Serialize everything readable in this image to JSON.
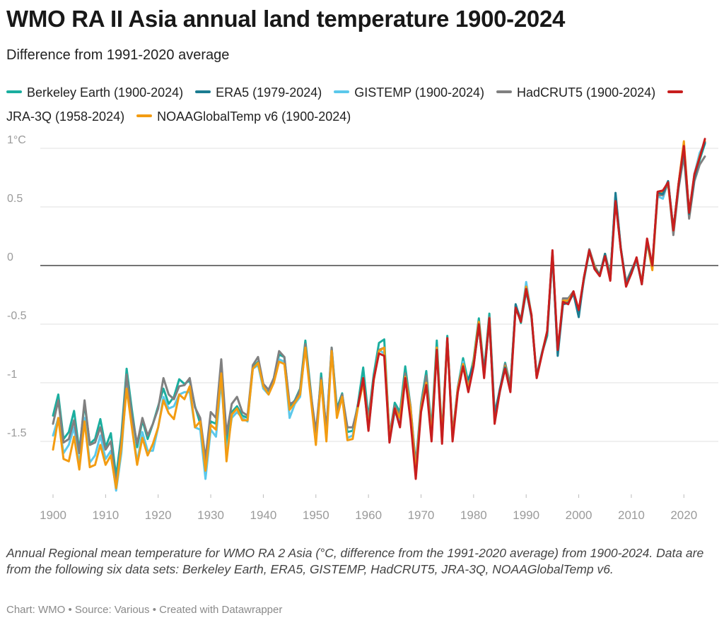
{
  "title": "WMO RA II Asia annual land temperature 1900-2024",
  "subtitle": "Difference from 1991-2020 average",
  "note": "Annual Regional mean temperature for WMO RA 2 Asia (°C, difference from the 1991-2020 average) from 1900-2024. Data are from the following six data sets: Berkeley Earth, ERA5, GISTEMP, HadCRUT5, JRA-3Q, NOAAGlobalTemp v6.",
  "footer": "Chart: WMO • Source: Various • Created with Datawrapper",
  "legend": [
    {
      "label": "Berkeley Earth (1900-2024)",
      "color": "#1aae9f"
    },
    {
      "label": "ERA5 (1979-2024)",
      "color": "#1b7c91"
    },
    {
      "label": "GISTEMP (1900-2024)",
      "color": "#5bc8eb"
    },
    {
      "label": "HadCRUT5 (1900-2024)",
      "color": "#808080"
    },
    {
      "label": "JRA-3Q (1958-2024)",
      "color": "#c81e1e"
    },
    {
      "label": "NOAAGlobalTemp v6 (1900-2024)",
      "color": "#f39c12"
    }
  ],
  "chart_data": {
    "type": "line",
    "xlabel": "",
    "ylabel": "",
    "x_range": [
      1900,
      2024
    ],
    "ylim": [
      -1.95,
      1.1
    ],
    "y_ticks": [
      1,
      0.5,
      0,
      -0.5,
      -1,
      -1.5
    ],
    "y_tick_labels": [
      "1°C",
      "0.5",
      "0",
      "-0.5",
      "-1",
      "-1.5"
    ],
    "x_ticks": [
      1900,
      1910,
      1920,
      1930,
      1940,
      1950,
      1960,
      1970,
      1980,
      1990,
      2000,
      2010,
      2020
    ],
    "x_tick_labels": [
      "1900",
      "1910",
      "1920",
      "1930",
      "1940",
      "1950",
      "1960",
      "1970",
      "1980",
      "1990",
      "2000",
      "2010",
      "2020"
    ],
    "grid": true,
    "zero_line": true,
    "legend_position": "top",
    "series": [
      {
        "name": "Berkeley Earth (1900-2024)",
        "color": "#1aae9f",
        "start": 1900,
        "values": [
          -1.28,
          -1.1,
          -1.48,
          -1.42,
          -1.24,
          -1.58,
          -1.18,
          -1.52,
          -1.48,
          -1.31,
          -1.55,
          -1.43,
          -1.8,
          -1.45,
          -0.88,
          -1.23,
          -1.55,
          -1.32,
          -1.48,
          -1.35,
          -1.2,
          -1.05,
          -1.18,
          -1.12,
          -0.97,
          -1.01,
          -0.98,
          -1.2,
          -1.35,
          -1.7,
          -1.33,
          -1.35,
          -0.85,
          -1.52,
          -1.25,
          -1.2,
          -1.28,
          -1.3,
          -0.87,
          -0.82,
          -1.05,
          -1.08,
          -0.96,
          -0.76,
          -0.78,
          -1.2,
          -1.15,
          -1.05,
          -0.64,
          -1.06,
          -1.5,
          -0.92,
          -1.42,
          -0.7,
          -1.22,
          -1.09,
          -1.42,
          -1.41,
          -1.18,
          -0.87,
          -1.3,
          -0.93,
          -0.66,
          -0.63,
          -1.46,
          -1.17,
          -1.25,
          -0.86,
          -1.2,
          -1.7,
          -1.18,
          -0.9,
          -1.4,
          -0.64,
          -1.45,
          -0.6,
          -1.46,
          -1.04,
          -0.79,
          -1.0,
          -0.8,
          -0.45,
          -0.9,
          -0.41,
          -1.26,
          -1.06,
          -0.83,
          -1.02,
          -0.34,
          -0.49,
          -0.22,
          -0.42,
          -0.95,
          -0.75,
          -0.6,
          0.11,
          -0.75,
          -0.3,
          -0.32,
          -0.23,
          -0.4,
          -0.12,
          0.12,
          -0.02,
          -0.09,
          0.1,
          -0.1,
          0.6,
          0.15,
          -0.15,
          -0.07,
          0.05,
          -0.15,
          0.2,
          -0.02,
          0.62,
          0.62,
          0.72,
          0.3,
          0.7,
          1.02,
          0.45,
          0.74,
          0.9,
          1.04
        ]
      },
      {
        "name": "ERA5 (1979-2024)",
        "color": "#1b7c91",
        "start": 1979,
        "values": [
          -0.97,
          -0.85,
          -0.52,
          -0.92,
          -0.47,
          -1.3,
          -1.05,
          -0.87,
          -1.06,
          -0.33,
          -0.48,
          -0.2,
          -0.44,
          -0.95,
          -0.75,
          -0.57,
          0.1,
          -0.77,
          -0.33,
          -0.32,
          -0.24,
          -0.44,
          -0.1,
          0.12,
          -0.02,
          -0.08,
          0.1,
          -0.12,
          0.62,
          0.15,
          -0.16,
          -0.05,
          0.06,
          -0.16,
          0.21,
          0.0,
          0.62,
          0.61,
          0.72,
          0.31,
          0.68,
          1.0,
          0.44,
          0.75,
          0.92,
          1.05
        ]
      },
      {
        "name": "GISTEMP (1900-2024)",
        "color": "#5bc8eb",
        "start": 1900,
        "values": [
          -1.45,
          -1.3,
          -1.6,
          -1.53,
          -1.38,
          -1.7,
          -1.3,
          -1.68,
          -1.62,
          -1.45,
          -1.65,
          -1.58,
          -1.92,
          -1.6,
          -1.0,
          -1.35,
          -1.68,
          -1.42,
          -1.58,
          -1.58,
          -1.38,
          -1.12,
          -1.22,
          -1.2,
          -1.1,
          -1.08,
          -1.08,
          -1.38,
          -1.4,
          -1.82,
          -1.4,
          -1.46,
          -0.98,
          -1.6,
          -1.3,
          -1.25,
          -1.3,
          -1.33,
          -0.88,
          -0.85,
          -1.05,
          -1.1,
          -0.98,
          -0.8,
          -0.82,
          -1.3,
          -1.18,
          -1.12,
          -0.68,
          -1.1,
          -1.5,
          -0.98,
          -1.45,
          -0.72,
          -1.28,
          -1.12,
          -1.47,
          -1.45,
          -1.2,
          -0.97,
          -1.4,
          -0.98,
          -0.72,
          -0.75,
          -1.5,
          -1.25,
          -1.33,
          -0.94,
          -1.25,
          -1.78,
          -1.22,
          -0.98,
          -1.48,
          -0.7,
          -1.5,
          -0.62,
          -1.47,
          -1.06,
          -0.82,
          -1.07,
          -0.84,
          -0.5,
          -0.93,
          -0.46,
          -1.3,
          -1.08,
          -0.86,
          -1.04,
          -0.36,
          -0.47,
          -0.14,
          -0.42,
          -0.94,
          -0.74,
          -0.57,
          0.12,
          -0.74,
          -0.3,
          -0.3,
          -0.24,
          -0.4,
          -0.1,
          0.12,
          0.0,
          -0.09,
          0.1,
          -0.1,
          0.58,
          0.14,
          -0.14,
          -0.05,
          0.05,
          -0.14,
          0.2,
          -0.01,
          0.59,
          0.57,
          0.72,
          0.3,
          0.7,
          1.04,
          0.43,
          0.78,
          0.96,
          1.05
        ]
      },
      {
        "name": "HadCRUT5 (1900-2024)",
        "color": "#808080",
        "start": 1900,
        "values": [
          -1.35,
          -1.15,
          -1.51,
          -1.48,
          -1.32,
          -1.6,
          -1.15,
          -1.53,
          -1.51,
          -1.38,
          -1.57,
          -1.5,
          -1.88,
          -1.5,
          -0.93,
          -1.28,
          -1.52,
          -1.3,
          -1.45,
          -1.35,
          -1.22,
          -0.96,
          -1.1,
          -1.14,
          -1.03,
          -1.02,
          -0.96,
          -1.21,
          -1.3,
          -1.65,
          -1.25,
          -1.3,
          -0.8,
          -1.44,
          -1.18,
          -1.12,
          -1.25,
          -1.28,
          -0.85,
          -0.78,
          -1.01,
          -1.06,
          -0.96,
          -0.73,
          -0.78,
          -1.18,
          -1.16,
          -1.06,
          -0.67,
          -1.08,
          -1.42,
          -0.96,
          -1.4,
          -0.7,
          -1.25,
          -1.1,
          -1.38,
          -1.38,
          -1.2,
          -0.97,
          -1.32,
          -0.97,
          -0.72,
          -0.7,
          -1.44,
          -1.2,
          -1.28,
          -0.92,
          -1.2,
          -1.72,
          -1.2,
          -0.94,
          -1.42,
          -0.7,
          -1.46,
          -0.62,
          -1.44,
          -1.04,
          -0.84,
          -1.04,
          -0.83,
          -0.48,
          -0.92,
          -0.44,
          -1.28,
          -1.06,
          -0.84,
          -1.02,
          -0.34,
          -0.46,
          -0.18,
          -0.42,
          -0.94,
          -0.75,
          -0.56,
          0.1,
          -0.74,
          -0.28,
          -0.28,
          -0.22,
          -0.4,
          -0.1,
          0.14,
          0.0,
          -0.08,
          0.1,
          -0.08,
          0.56,
          0.14,
          -0.14,
          -0.04,
          0.06,
          -0.14,
          0.2,
          0.0,
          0.6,
          0.6,
          0.7,
          0.26,
          0.66,
          0.94,
          0.4,
          0.72,
          0.86,
          0.93
        ]
      },
      {
        "name": "JRA-3Q (1958-2024)",
        "color": "#c81e1e",
        "start": 1958,
        "values": [
          -1.2,
          -0.96,
          -1.41,
          -0.97,
          -0.75,
          -0.77,
          -1.51,
          -1.22,
          -1.38,
          -0.96,
          -1.32,
          -1.82,
          -1.25,
          -1.02,
          -1.5,
          -0.72,
          -1.52,
          -0.62,
          -1.5,
          -1.08,
          -0.86,
          -1.08,
          -0.86,
          -0.5,
          -0.96,
          -0.45,
          -1.35,
          -1.07,
          -0.88,
          -1.08,
          -0.36,
          -0.48,
          -0.2,
          -0.42,
          -0.96,
          -0.76,
          -0.56,
          0.13,
          -0.72,
          -0.31,
          -0.33,
          -0.22,
          -0.38,
          -0.1,
          0.13,
          -0.03,
          -0.09,
          0.08,
          -0.13,
          0.55,
          0.14,
          -0.18,
          -0.07,
          0.07,
          -0.16,
          0.23,
          0.0,
          0.63,
          0.64,
          0.71,
          0.3,
          0.7,
          1.02,
          0.45,
          0.78,
          0.92,
          1.08
        ]
      },
      {
        "name": "NOAAGlobalTemp v6 (1900-2024)",
        "color": "#f39c12",
        "start": 1900,
        "values": [
          -1.57,
          -1.3,
          -1.65,
          -1.67,
          -1.46,
          -1.74,
          -1.33,
          -1.72,
          -1.7,
          -1.53,
          -1.7,
          -1.62,
          -1.9,
          -1.55,
          -1.05,
          -1.38,
          -1.7,
          -1.47,
          -1.62,
          -1.52,
          -1.38,
          -1.15,
          -1.26,
          -1.31,
          -1.1,
          -1.14,
          -1.03,
          -1.38,
          -1.33,
          -1.75,
          -1.36,
          -1.4,
          -0.92,
          -1.67,
          -1.27,
          -1.22,
          -1.32,
          -1.32,
          -0.88,
          -0.83,
          -1.03,
          -1.1,
          -1.0,
          -0.82,
          -0.84,
          -1.23,
          -1.17,
          -1.1,
          -0.7,
          -1.12,
          -1.53,
          -0.98,
          -1.5,
          -0.73,
          -1.3,
          -1.12,
          -1.49,
          -1.48,
          -1.21,
          -1.0,
          -1.38,
          -0.98,
          -0.73,
          -0.7,
          -1.48,
          -1.22,
          -1.3,
          -0.95,
          -1.22,
          -1.78,
          -1.22,
          -1.0,
          -1.46,
          -0.7,
          -1.48,
          -0.62,
          -1.48,
          -1.06,
          -0.84,
          -1.06,
          -0.82,
          -0.48,
          -0.93,
          -0.45,
          -1.32,
          -1.07,
          -0.86,
          -1.05,
          -0.35,
          -0.48,
          -0.18,
          -0.42,
          -0.95,
          -0.75,
          -0.56,
          0.11,
          -0.74,
          -0.3,
          -0.3,
          -0.23,
          -0.41,
          -0.1,
          0.12,
          -0.01,
          -0.08,
          0.1,
          -0.11,
          0.58,
          0.14,
          -0.16,
          -0.05,
          0.06,
          -0.15,
          0.2,
          -0.04,
          0.61,
          0.63,
          0.7,
          0.3,
          0.7,
          1.06,
          0.44,
          0.77,
          0.93,
          1.06
        ]
      }
    ]
  }
}
